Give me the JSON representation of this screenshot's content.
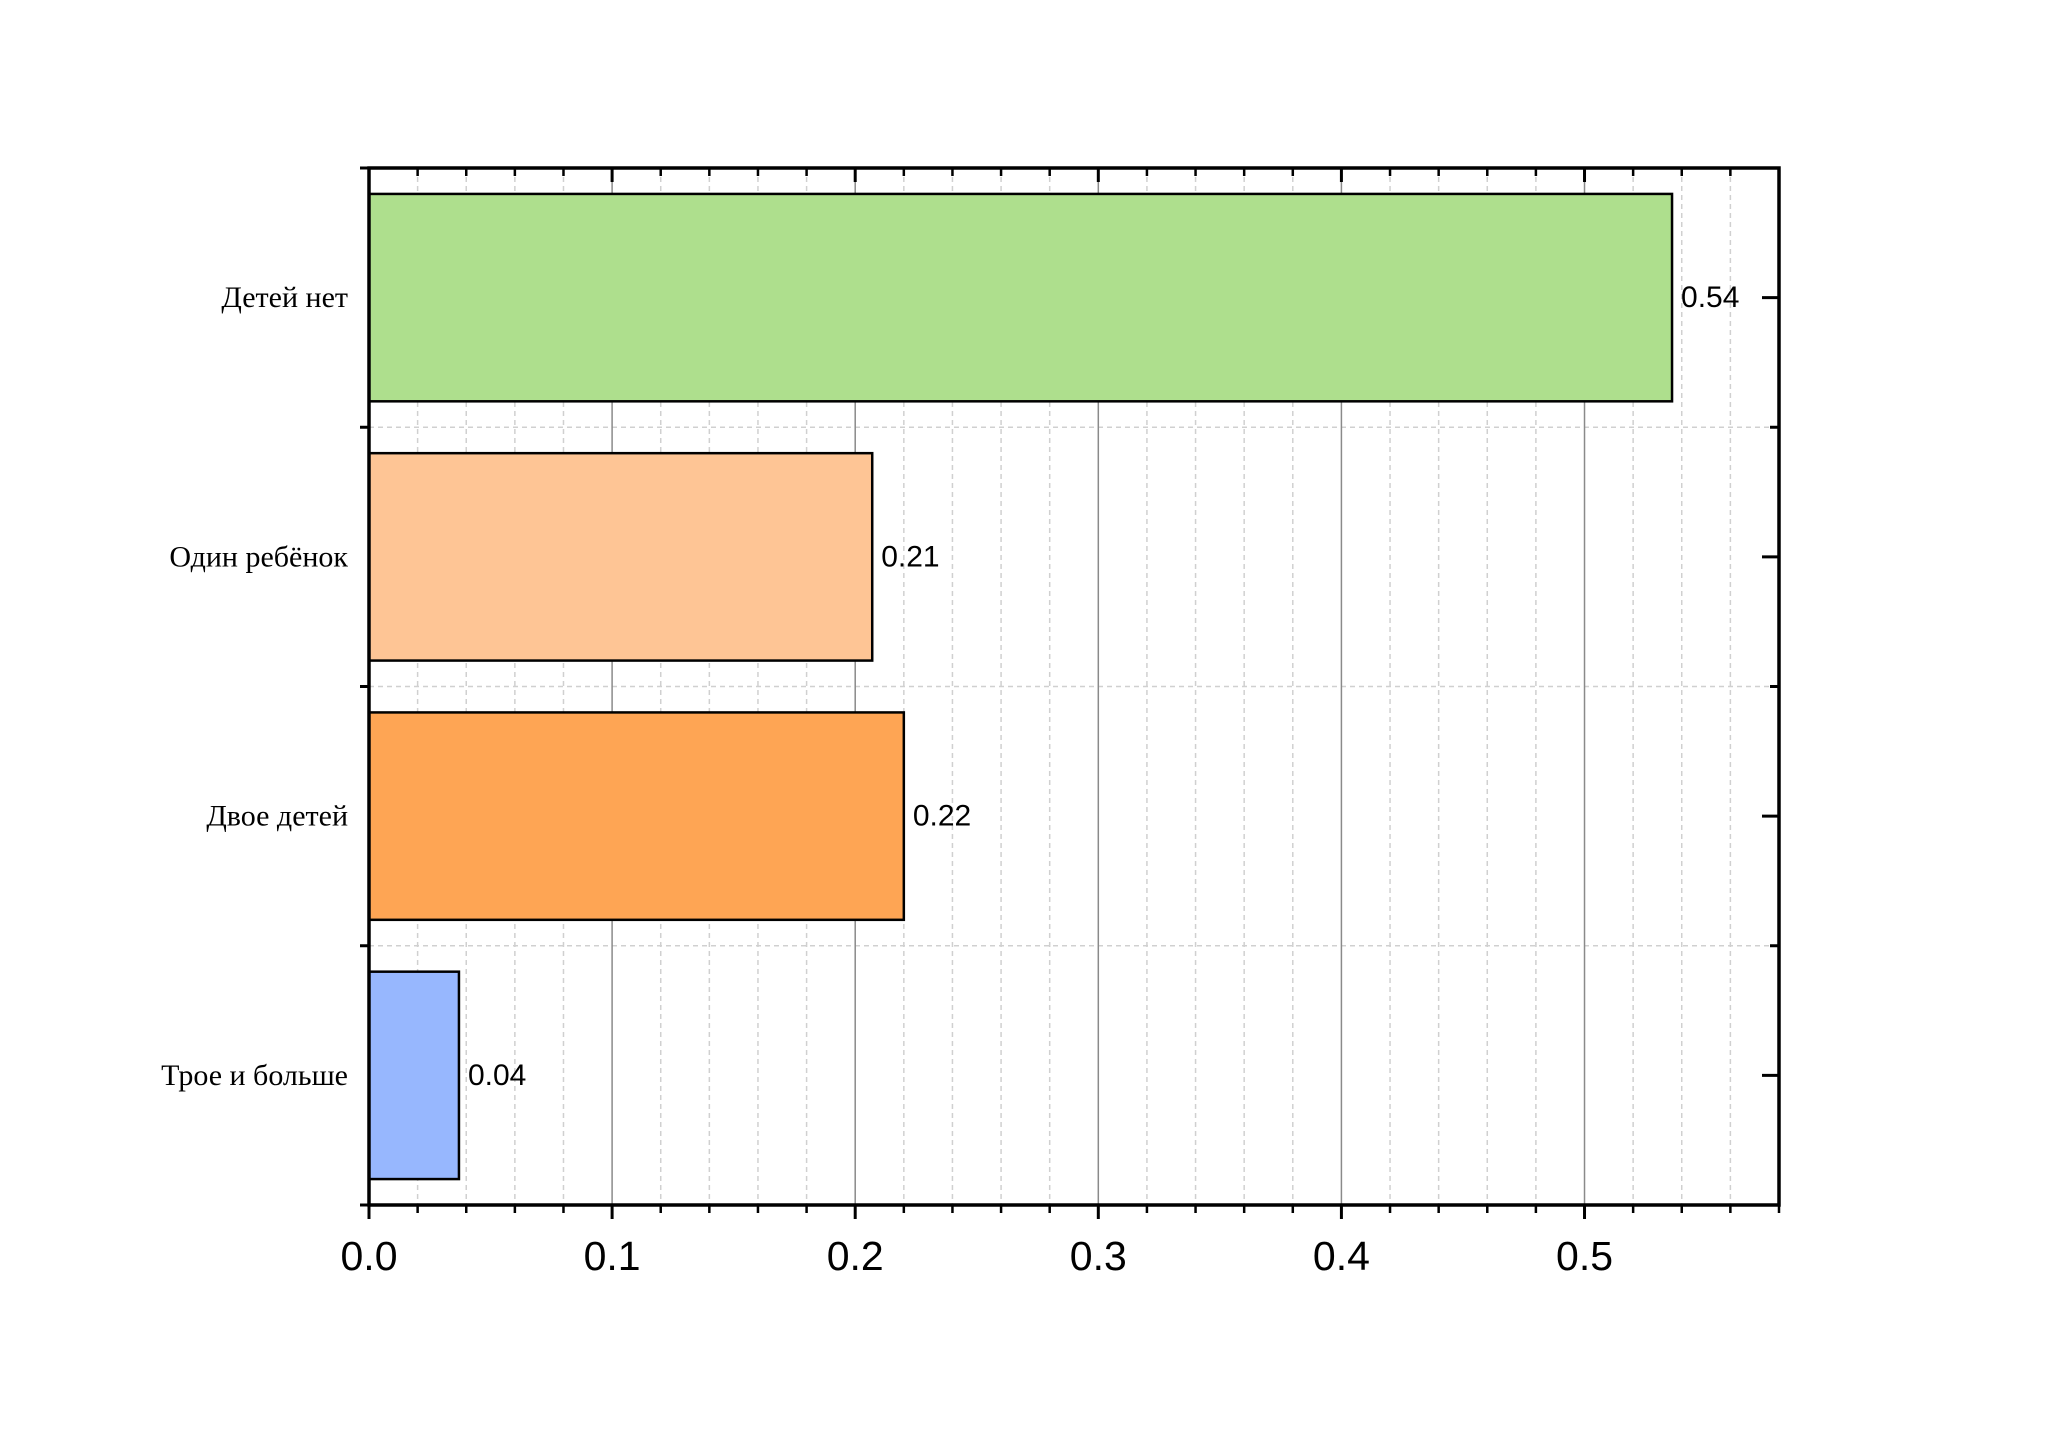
{
  "chart_data": {
    "type": "bar",
    "orientation": "horizontal",
    "categories": [
      "Детей нет",
      "Один ребёнок",
      "Двое детей",
      "Трое и больше"
    ],
    "values": [
      0.536,
      0.207,
      0.22,
      0.037
    ],
    "value_labels": [
      "0.54",
      "0.21",
      "0.22",
      "0.04"
    ],
    "bar_colors": [
      "#aedf8d",
      "#fec595",
      "#fea554",
      "#97b7fe"
    ],
    "bar_edge_color": "#000000",
    "xlim": [
      0,
      0.58
    ],
    "x_ticks": [
      0.0,
      0.1,
      0.2,
      0.3,
      0.4,
      0.5
    ],
    "x_tick_labels": [
      "0.0",
      "0.1",
      "0.2",
      "0.3",
      "0.4",
      "0.5"
    ],
    "x_minor_step": 0.02,
    "title": "",
    "xlabel": "",
    "ylabel": "",
    "grid": true,
    "legend": "none"
  }
}
